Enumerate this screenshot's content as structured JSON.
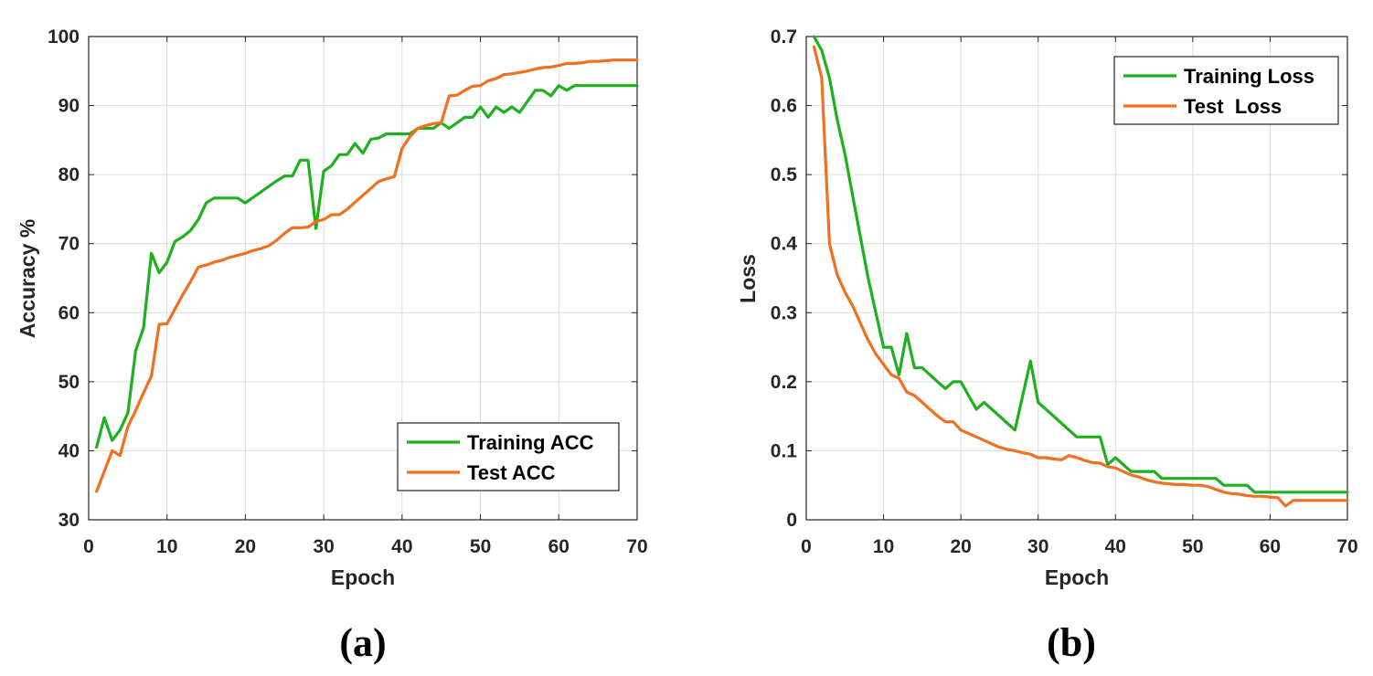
{
  "chart_data": [
    {
      "type": "line",
      "caption": "(a)",
      "title": "",
      "xlabel": "Epoch",
      "ylabel": "Accuracy %",
      "xlim": [
        0,
        70
      ],
      "ylim": [
        30,
        100
      ],
      "xticks": [
        0,
        10,
        20,
        30,
        40,
        50,
        60,
        70
      ],
      "yticks": [
        30,
        40,
        50,
        60,
        70,
        80,
        90,
        100
      ],
      "grid": true,
      "legend_position": "bottom-right",
      "series": [
        {
          "name": "Training ACC",
          "color": "#1fb01f",
          "x": [
            1,
            2,
            3,
            4,
            5,
            6,
            7,
            8,
            9,
            10,
            11,
            12,
            13,
            14,
            15,
            16,
            17,
            18,
            19,
            20,
            21,
            22,
            23,
            24,
            25,
            26,
            27,
            28,
            29,
            30,
            31,
            32,
            33,
            34,
            35,
            36,
            37,
            38,
            39,
            40,
            41,
            42,
            43,
            44,
            45,
            46,
            47,
            48,
            49,
            50,
            51,
            52,
            53,
            54,
            55,
            56,
            57,
            58,
            59,
            60,
            61,
            62,
            63,
            64,
            65,
            66,
            67,
            68,
            69,
            70
          ],
          "values": [
            40.5,
            44.8,
            41.5,
            43,
            45.5,
            54.5,
            57.8,
            68.6,
            65.8,
            67.3,
            70.3,
            71,
            71.9,
            73.5,
            75.9,
            76.6,
            76.6,
            76.6,
            76.6,
            75.9,
            76.7,
            77.5,
            78.3,
            79.1,
            79.8,
            79.8,
            82.1,
            82.1,
            72.2,
            80.5,
            81.3,
            82.9,
            82.9,
            84.5,
            83.1,
            85.1,
            85.3,
            85.9,
            85.9,
            85.9,
            85.9,
            86.7,
            86.7,
            86.7,
            87.5,
            86.7,
            87.5,
            88.3,
            88.3,
            89.8,
            88.3,
            89.8,
            89,
            89.8,
            89,
            90.6,
            92.2,
            92.2,
            91.4,
            92.9,
            92.2,
            92.9,
            92.9,
            92.9,
            92.9,
            92.9,
            92.9,
            92.9,
            92.9,
            92.9
          ]
        },
        {
          "name": "Test ACC",
          "color": "#f07020",
          "x": [
            1,
            2,
            3,
            4,
            5,
            6,
            7,
            8,
            9,
            10,
            11,
            12,
            13,
            14,
            15,
            16,
            17,
            18,
            19,
            20,
            21,
            22,
            23,
            24,
            25,
            26,
            27,
            28,
            29,
            30,
            31,
            32,
            33,
            34,
            35,
            36,
            37,
            38,
            39,
            40,
            41,
            42,
            43,
            44,
            45,
            46,
            47,
            48,
            49,
            50,
            51,
            52,
            53,
            54,
            55,
            56,
            57,
            58,
            59,
            60,
            61,
            62,
            63,
            64,
            65,
            66,
            67,
            68,
            69,
            70
          ],
          "values": [
            34.1,
            37,
            40,
            39.3,
            43.5,
            45.8,
            48.4,
            50.8,
            58.3,
            58.4,
            60.5,
            62.6,
            64.5,
            66.6,
            66.9,
            67.3,
            67.6,
            68,
            68.3,
            68.6,
            69,
            69.3,
            69.7,
            70.5,
            71.5,
            72.3,
            72.3,
            72.4,
            73.2,
            73.5,
            74.2,
            74.2,
            75,
            76,
            77,
            78,
            79,
            79.4,
            79.7,
            83.8,
            85.5,
            86.7,
            87.1,
            87.4,
            87.5,
            91.4,
            91.5,
            92.2,
            92.8,
            92.9,
            93.6,
            93.9,
            94.5,
            94.6,
            94.8,
            95,
            95.3,
            95.5,
            95.6,
            95.8,
            96.1,
            96.1,
            96.2,
            96.4,
            96.4,
            96.5,
            96.6,
            96.6,
            96.6,
            96.6
          ]
        }
      ]
    },
    {
      "type": "line",
      "caption": "(b)",
      "title": "",
      "xlabel": "Epoch",
      "ylabel": "Loss",
      "xlim": [
        0,
        70
      ],
      "ylim": [
        0,
        0.7
      ],
      "xticks": [
        0,
        10,
        20,
        30,
        40,
        50,
        60,
        70
      ],
      "yticks": [
        0,
        0.1,
        0.2,
        0.3,
        0.4,
        0.5,
        0.6,
        0.7
      ],
      "ytick_labels": [
        "0",
        "0.1",
        "0.2",
        "0.3",
        "0.4",
        "0.5",
        "0.6",
        "0.7"
      ],
      "grid": true,
      "legend_position": "top-right",
      "series": [
        {
          "name": "Training Loss",
          "color": "#1fb01f",
          "x": [
            1,
            2,
            3,
            4,
            5,
            6,
            7,
            8,
            9,
            10,
            11,
            12,
            13,
            14,
            15,
            16,
            17,
            18,
            19,
            20,
            21,
            22,
            23,
            24,
            25,
            26,
            27,
            28,
            29,
            30,
            31,
            32,
            33,
            34,
            35,
            36,
            37,
            38,
            39,
            40,
            41,
            42,
            43,
            44,
            45,
            46,
            47,
            48,
            49,
            50,
            51,
            52,
            53,
            54,
            55,
            56,
            57,
            58,
            59,
            60,
            61,
            62,
            63,
            64,
            65,
            66,
            67,
            68,
            69,
            70
          ],
          "values": [
            0.7,
            0.68,
            0.64,
            0.58,
            0.53,
            0.47,
            0.41,
            0.35,
            0.3,
            0.25,
            0.25,
            0.21,
            0.27,
            0.22,
            0.22,
            0.21,
            0.2,
            0.19,
            0.2,
            0.2,
            0.18,
            0.16,
            0.17,
            0.16,
            0.15,
            0.14,
            0.13,
            0.18,
            0.23,
            0.17,
            0.16,
            0.15,
            0.14,
            0.13,
            0.12,
            0.12,
            0.12,
            0.12,
            0.08,
            0.09,
            0.08,
            0.07,
            0.07,
            0.07,
            0.07,
            0.06,
            0.06,
            0.06,
            0.06,
            0.06,
            0.06,
            0.06,
            0.06,
            0.05,
            0.05,
            0.05,
            0.05,
            0.04,
            0.04,
            0.04,
            0.04,
            0.04,
            0.04,
            0.04,
            0.04,
            0.04,
            0.04,
            0.04,
            0.04,
            0.04
          ]
        },
        {
          "name": "Test  Loss",
          "color": "#f07020",
          "x": [
            1,
            2,
            3,
            4,
            5,
            6,
            7,
            8,
            9,
            10,
            11,
            12,
            13,
            14,
            15,
            16,
            17,
            18,
            19,
            20,
            21,
            22,
            23,
            24,
            25,
            26,
            27,
            28,
            29,
            30,
            31,
            32,
            33,
            34,
            35,
            36,
            37,
            38,
            39,
            40,
            41,
            42,
            43,
            44,
            45,
            46,
            47,
            48,
            49,
            50,
            51,
            52,
            53,
            54,
            55,
            56,
            57,
            58,
            59,
            60,
            61,
            62,
            63,
            64,
            65,
            66,
            67,
            68,
            69,
            70
          ],
          "values": [
            0.685,
            0.64,
            0.4,
            0.355,
            0.33,
            0.31,
            0.285,
            0.26,
            0.24,
            0.225,
            0.21,
            0.205,
            0.185,
            0.18,
            0.17,
            0.16,
            0.15,
            0.142,
            0.142,
            0.13,
            0.125,
            0.12,
            0.115,
            0.11,
            0.105,
            0.102,
            0.1,
            0.097,
            0.095,
            0.09,
            0.09,
            0.088,
            0.087,
            0.093,
            0.09,
            0.086,
            0.083,
            0.082,
            0.077,
            0.075,
            0.07,
            0.065,
            0.062,
            0.058,
            0.055,
            0.053,
            0.052,
            0.051,
            0.051,
            0.05,
            0.05,
            0.048,
            0.044,
            0.04,
            0.038,
            0.037,
            0.035,
            0.034,
            0.034,
            0.033,
            0.032,
            0.02,
            0.028,
            0.028,
            0.028,
            0.028,
            0.028,
            0.028,
            0.028,
            0.028
          ]
        }
      ]
    }
  ]
}
